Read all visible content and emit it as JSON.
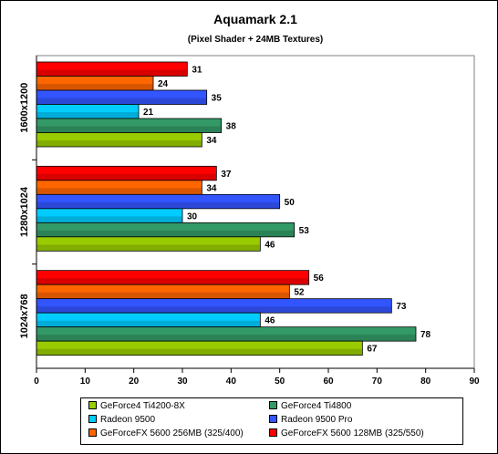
{
  "chart_data": {
    "type": "bar",
    "orientation": "horizontal",
    "title": "Aquamark 2.1",
    "subtitle": "(Pixel Shader + 24MB Textures)",
    "xlim": [
      0,
      90
    ],
    "x_ticks": [
      "0",
      "10",
      "20",
      "30",
      "40",
      "50",
      "60",
      "70",
      "80",
      "90"
    ],
    "categories": [
      "1600x1200",
      "1280x1024",
      "1024x768"
    ],
    "series": [
      {
        "name": "GeForceFX 5600 128MB (325/550)",
        "color": "#ff0000",
        "values": [
          31,
          37,
          56
        ]
      },
      {
        "name": "GeForceFX 5600 256MB (325/400)",
        "color": "#ff6600",
        "values": [
          24,
          34,
          52
        ]
      },
      {
        "name": "Radeon 9500 Pro",
        "color": "#3355ff",
        "values": [
          35,
          50,
          73
        ]
      },
      {
        "name": "Radeon 9500",
        "color": "#00ccff",
        "values": [
          21,
          30,
          46
        ]
      },
      {
        "name": "GeForce4 Ti4800",
        "color": "#339966",
        "values": [
          38,
          53,
          78
        ]
      },
      {
        "name": "GeForce4 Ti4200-8X",
        "color": "#99cc00",
        "values": [
          34,
          46,
          67
        ]
      }
    ],
    "legend": {
      "position": "bottom",
      "entries": [
        {
          "label": "GeForce4 Ti4200-8X",
          "color": "#99cc00"
        },
        {
          "label": "GeForce4 Ti4800",
          "color": "#339966"
        },
        {
          "label": "Radeon 9500",
          "color": "#00ccff"
        },
        {
          "label": "Radeon 9500 Pro",
          "color": "#3355ff"
        },
        {
          "label": "GeForceFX 5600 256MB (325/400)",
          "color": "#ff6600"
        },
        {
          "label": "GeForceFX 5600 128MB (325/550)",
          "color": "#ff0000"
        }
      ]
    },
    "grid": false
  }
}
